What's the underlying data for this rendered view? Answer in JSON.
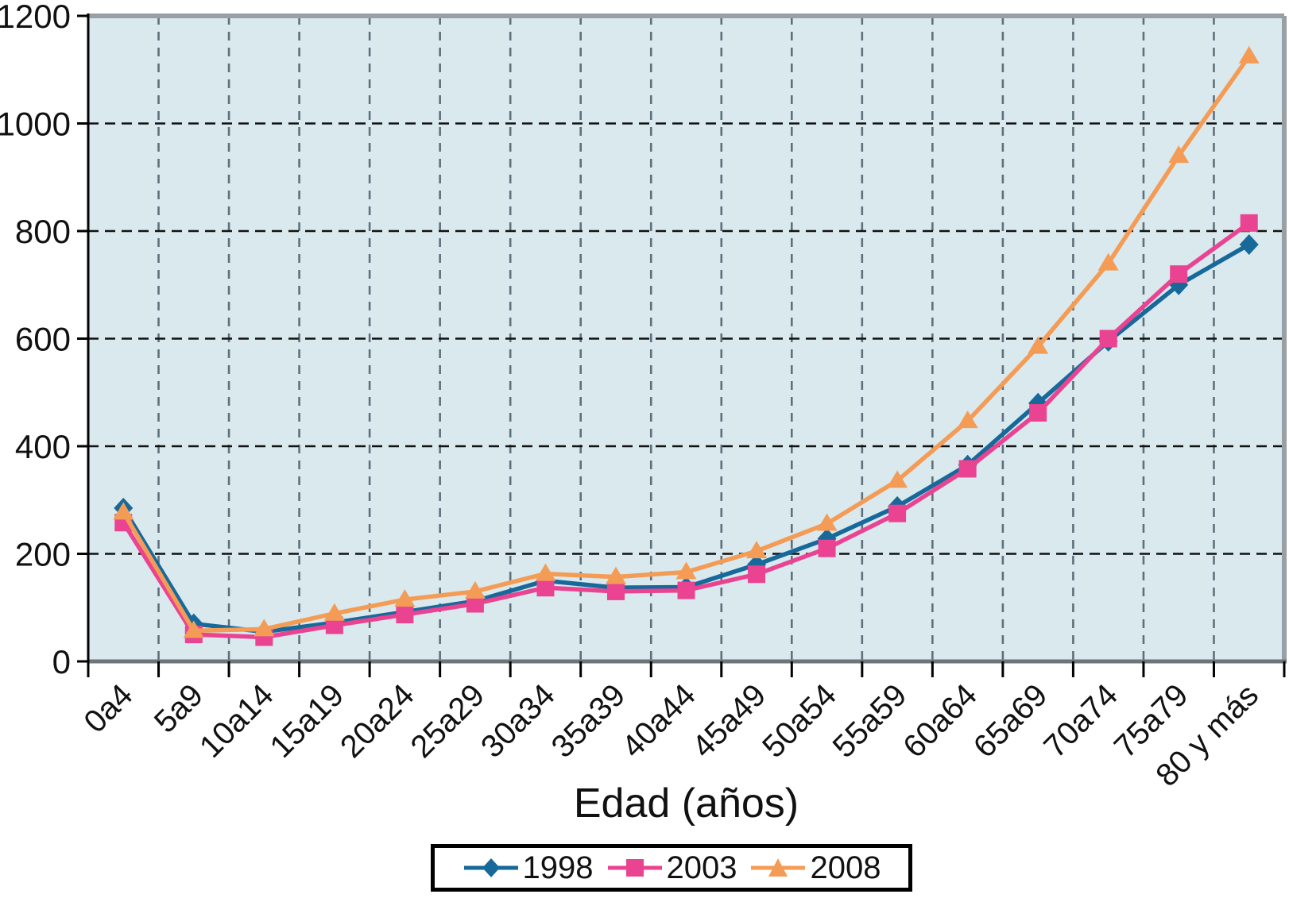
{
  "chart_data": {
    "type": "line",
    "title": "",
    "xlabel": "Edad (años)",
    "ylabel": "",
    "ylim": [
      0,
      1200
    ],
    "yticks": [
      0,
      200,
      400,
      600,
      800,
      1000,
      1200
    ],
    "grid": "both-dashed",
    "legend_position": "bottom",
    "plot_bg_color": "#d9e9ee",
    "h_grid_color": "#111111",
    "v_grid_color": "#5f707c",
    "axis_border_gray": "#97a0a4",
    "axis_line_color": "#000000",
    "categories": [
      "0a4",
      "5a9",
      "10a14",
      "15a19",
      "20a24",
      "25a29",
      "30a34",
      "35a39",
      "40a44",
      "45a49",
      "50a54",
      "55a59",
      "60a64",
      "65a69",
      "70a74",
      "75a79",
      "80 y más"
    ],
    "series": [
      {
        "name": "1998",
        "marker": "diamond",
        "color": "#17699a",
        "values": [
          285,
          70,
          55,
          72,
          92,
          112,
          150,
          137,
          138,
          180,
          228,
          288,
          365,
          480,
          595,
          700,
          775
        ]
      },
      {
        "name": "2003",
        "marker": "square",
        "color": "#ea4392",
        "values": [
          258,
          50,
          45,
          67,
          87,
          107,
          137,
          130,
          132,
          162,
          210,
          275,
          358,
          462,
          600,
          720,
          815
        ]
      },
      {
        "name": "2008",
        "marker": "triangle",
        "color": "#f49c55",
        "values": [
          277,
          57,
          60,
          89,
          115,
          130,
          163,
          157,
          166,
          205,
          256,
          336,
          447,
          585,
          740,
          940,
          1125
        ]
      }
    ]
  }
}
